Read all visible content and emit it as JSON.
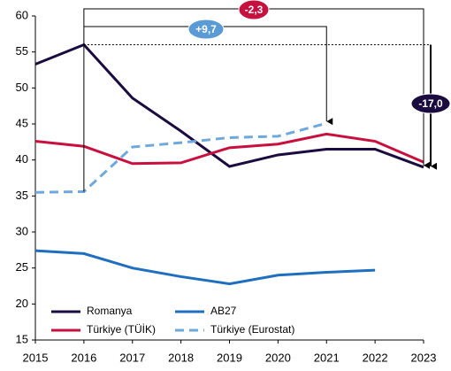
{
  "chart_data": {
    "type": "line",
    "x": [
      2015,
      2016,
      2017,
      2018,
      2019,
      2020,
      2021,
      2022,
      2023
    ],
    "series": [
      {
        "name": "Romanya",
        "color": "#1b0c3f",
        "dash": false,
        "values": [
          53.3,
          56.0,
          48.6,
          44.0,
          39.1,
          40.7,
          41.5,
          41.5,
          39.0
        ]
      },
      {
        "name": "AB27",
        "color": "#1f6fc0",
        "dash": false,
        "values": [
          27.4,
          27.0,
          25.0,
          23.8,
          22.8,
          24.0,
          24.4,
          24.7,
          null
        ]
      },
      {
        "name": "Türkiye (TÜİK)",
        "color": "#c8103e",
        "dash": false,
        "values": [
          42.6,
          41.9,
          39.5,
          39.6,
          41.7,
          42.2,
          43.6,
          42.6,
          39.7
        ]
      },
      {
        "name": "Türkiye (Eurostat)",
        "color": "#6fa8dc",
        "dash": true,
        "values": [
          35.5,
          35.6,
          41.8,
          42.4,
          43.1,
          43.3,
          45.1,
          null,
          null
        ]
      }
    ],
    "annotations": [
      "+9,7",
      "-2,3",
      "-17,0"
    ],
    "xlim": [
      2015,
      2023
    ],
    "xticks": [
      2015,
      2016,
      2017,
      2018,
      2019,
      2020,
      2021,
      2022,
      2023
    ],
    "ylim": [
      15,
      60
    ],
    "yticks": [
      15,
      20,
      25,
      30,
      35,
      40,
      45,
      50,
      55,
      60
    ],
    "grid": false
  }
}
